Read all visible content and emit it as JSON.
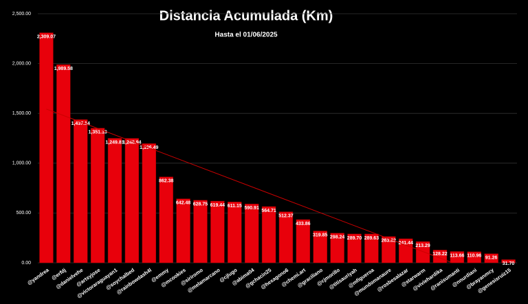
{
  "chart_data": {
    "type": "bar",
    "title": "Distancia Acumulada (Km)",
    "subtitle": "Hasta el 01/06/2025",
    "categories": [
      "@yandrea",
      "@erfdj",
      "@danielvehe",
      "@artsyjose",
      "@victoraraguayan1",
      "@soychalbed",
      "@rainbowdash4l",
      "@emmy",
      "@mcookies",
      "@siriromo",
      "@melamarcano",
      "@cjlugo",
      "@abima04",
      "@gchacin25",
      "@hexagono6",
      "@chemi.art",
      "@graciliano",
      "@cjmorillo",
      "@titisauriyah",
      "@mfigueroa",
      "@mundomanaure",
      "@rosbesalazar",
      "@starwarm",
      "@viviehardika",
      "@ranisumanti",
      "@nnurdiani",
      "@brayanmcy",
      "@genesisruiz15"
    ],
    "values": [
      2309.07,
      1989.58,
      1437.14,
      1351.13,
      1249.81,
      1248.94,
      1196.49,
      862.38,
      642.48,
      628.75,
      619.44,
      611.15,
      590.91,
      564.71,
      512.37,
      433.86,
      319.85,
      298.24,
      289.7,
      289.63,
      263.82,
      241.44,
      213.29,
      128.22,
      113.66,
      110.96,
      91.26,
      31.7
    ],
    "value_labels": [
      "2,309.07",
      "1,989.58",
      "1,437.14",
      "1,351.13",
      "1,249.81",
      "1,248.94",
      "1,196.49",
      "862.38",
      "642.48",
      "628.75",
      "619.44",
      "611.15",
      "590.91",
      "564.71",
      "512.37",
      "433.86",
      "319.85",
      "298.24",
      "289.70",
      "289.63",
      "263.82",
      "241.44",
      "213.29",
      "128.22",
      "113.66",
      "110.96",
      "91.26",
      "31.70"
    ],
    "color": "#e8000b",
    "ylim": [
      0,
      2500
    ],
    "yticks": [
      {
        "value": 0,
        "label": "0.00"
      },
      {
        "value": 500,
        "label": "500.00"
      },
      {
        "value": 1000,
        "label": "1,000.00"
      },
      {
        "value": 1500,
        "label": "1,500.00"
      },
      {
        "value": 2000,
        "label": "2,000.00"
      },
      {
        "value": 2500,
        "label": "2,500.00"
      }
    ],
    "grid": true,
    "trendline": true
  }
}
